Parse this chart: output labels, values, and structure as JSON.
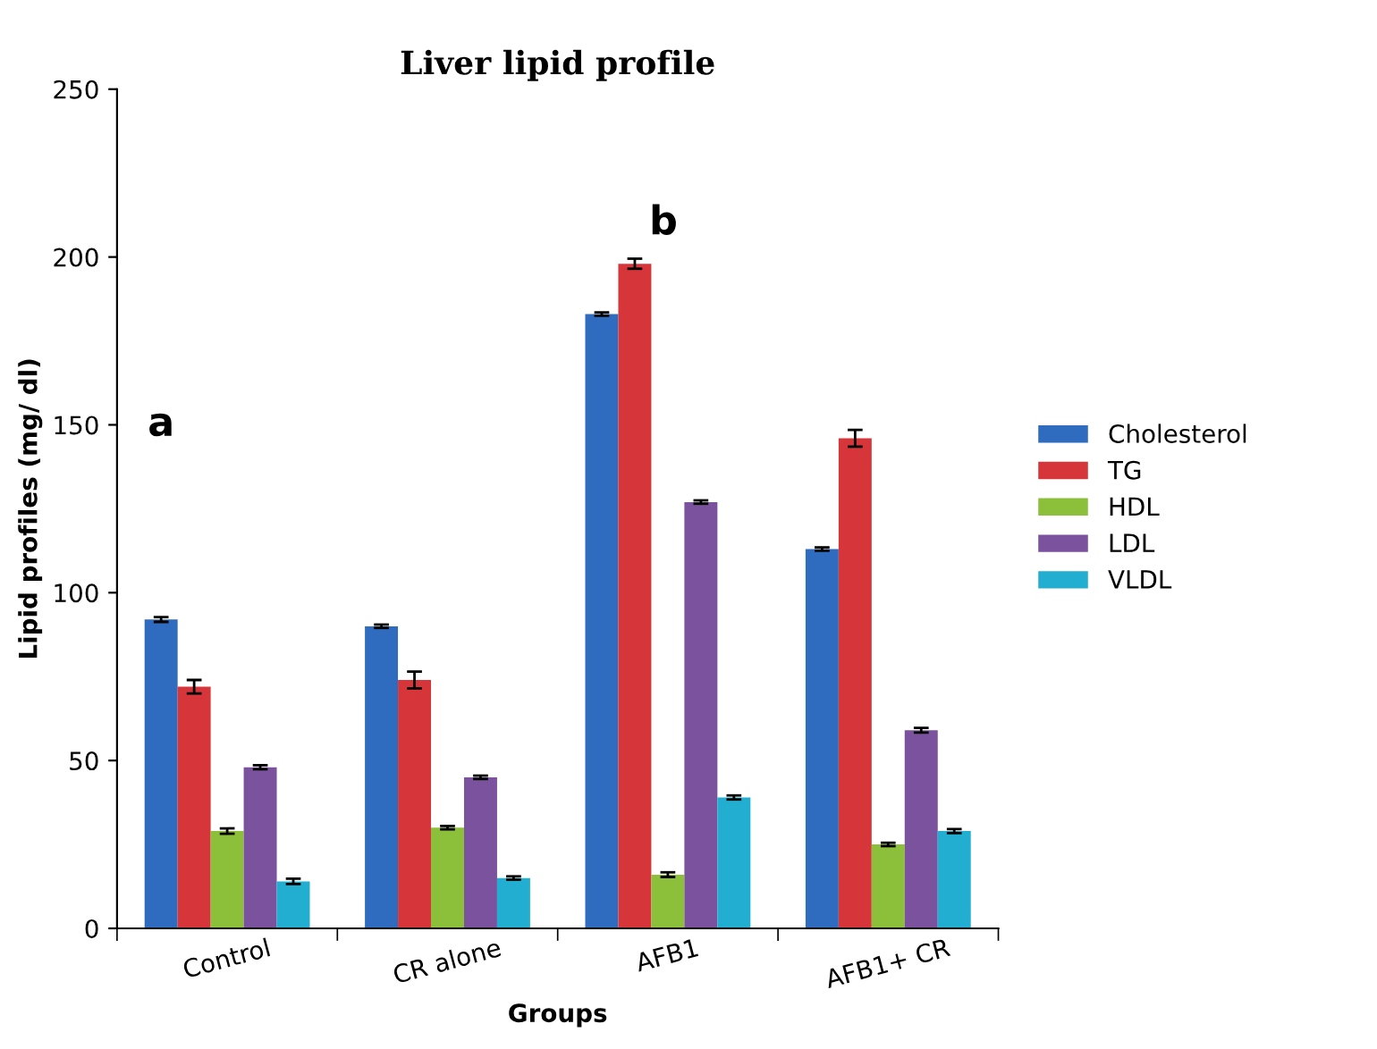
{
  "chart_data": {
    "type": "bar",
    "title": "Liver lipid profile",
    "xlabel": "Groups",
    "ylabel": "Lipid profiles (mg/ dl)",
    "categories": [
      "Control",
      "CR alone",
      "AFB1",
      "AFB1+ CR"
    ],
    "series": [
      {
        "name": "Cholesterol",
        "color": "#2f6bbf",
        "values": [
          92,
          90,
          183,
          113
        ],
        "errors": [
          0.7,
          0.5,
          0.5,
          0.5
        ]
      },
      {
        "name": "TG",
        "color": "#d6353a",
        "values": [
          72,
          74,
          198,
          146
        ],
        "errors": [
          2,
          2.5,
          1.5,
          2.5
        ]
      },
      {
        "name": "HDL",
        "color": "#8cbf3a",
        "values": [
          29,
          30,
          16,
          25
        ],
        "errors": [
          0.8,
          0.5,
          0.7,
          0.5
        ]
      },
      {
        "name": "LDL",
        "color": "#7b529e",
        "values": [
          48,
          45,
          127,
          59
        ],
        "errors": [
          0.6,
          0.5,
          0.5,
          0.7
        ]
      },
      {
        "name": "VLDL",
        "color": "#22aed0",
        "values": [
          14,
          15,
          39,
          29
        ],
        "errors": [
          0.8,
          0.5,
          0.6,
          0.6
        ]
      }
    ],
    "ylim": [
      0,
      250
    ],
    "yticks": [
      0,
      50,
      100,
      150,
      200,
      250
    ],
    "grid": false,
    "legend": "right",
    "annotations": [
      "a",
      "b"
    ]
  }
}
